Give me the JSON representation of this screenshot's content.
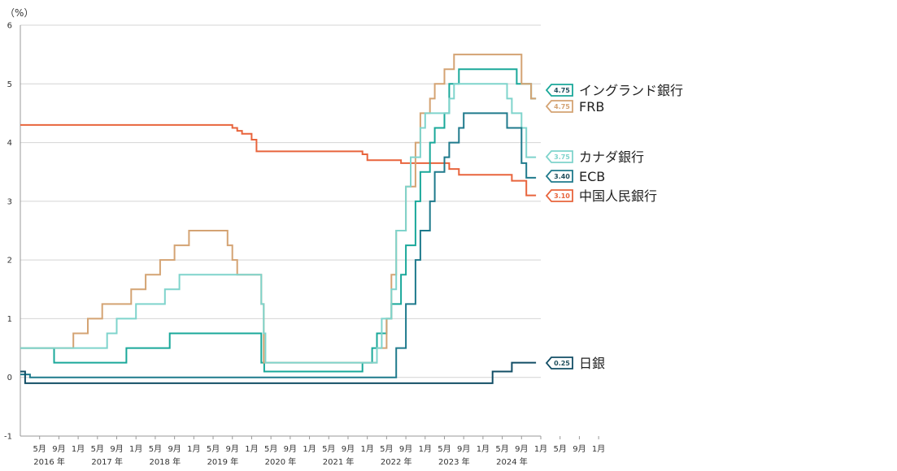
{
  "chart_data": {
    "type": "line",
    "unit_label": "（%）",
    "ylim": [
      -1,
      6
    ],
    "yticks": [
      "6",
      "5",
      "4",
      "3",
      "2",
      "1",
      "0",
      "-1"
    ],
    "x_tick_labels": [
      "5月",
      "9月",
      "1月",
      "5月",
      "9月",
      "1月",
      "5月",
      "9月",
      "1月",
      "5月",
      "9月",
      "1月",
      "5月",
      "9月",
      "1月",
      "5月",
      "9月",
      "1月",
      "5月",
      "9月",
      "1月",
      "5月",
      "9月",
      "1月",
      "5月",
      "9月",
      "1月",
      "5月",
      "9月",
      "1月"
    ],
    "year_labels": [
      "2016 年",
      "2017 年",
      "2018 年",
      "2019 年",
      "2020 年",
      "2021 年",
      "2022 年",
      "2023 年",
      "2024 年"
    ],
    "xlim": [
      "2016-01",
      "2025-01"
    ],
    "grid": true,
    "series": [
      {
        "name": "中国人民銀行",
        "color": "#e8643c",
        "end_value": "3.10",
        "points": [
          [
            "2016-01",
            4.3
          ],
          [
            "2019-08",
            4.3
          ],
          [
            "2019-09",
            4.25
          ],
          [
            "2019-10",
            4.2
          ],
          [
            "2019-11",
            4.15
          ],
          [
            "2020-01",
            4.05
          ],
          [
            "2020-02",
            3.85
          ],
          [
            "2020-04",
            3.85
          ],
          [
            "2021-12",
            3.8
          ],
          [
            "2022-01",
            3.7
          ],
          [
            "2022-08",
            3.65
          ],
          [
            "2023-06",
            3.55
          ],
          [
            "2023-08",
            3.45
          ],
          [
            "2024-02",
            3.45
          ],
          [
            "2024-07",
            3.35
          ],
          [
            "2024-10",
            3.1
          ],
          [
            "2024-12",
            3.1
          ]
        ]
      },
      {
        "name": "イングランド銀行",
        "color": "#1aa89a",
        "end_value": "4.75",
        "points": [
          [
            "2016-01",
            0.5
          ],
          [
            "2016-08",
            0.25
          ],
          [
            "2017-11",
            0.5
          ],
          [
            "2018-08",
            0.75
          ],
          [
            "2020-03",
            0.25
          ],
          [
            "2020-03-19",
            0.1
          ],
          [
            "2021-12",
            0.25
          ],
          [
            "2022-02",
            0.5
          ],
          [
            "2022-03",
            0.75
          ],
          [
            "2022-05",
            1.0
          ],
          [
            "2022-06",
            1.25
          ],
          [
            "2022-08",
            1.75
          ],
          [
            "2022-09",
            2.25
          ],
          [
            "2022-11",
            3.0
          ],
          [
            "2022-12",
            3.5
          ],
          [
            "2023-02",
            4.0
          ],
          [
            "2023-03",
            4.25
          ],
          [
            "2023-05",
            4.5
          ],
          [
            "2023-06",
            5.0
          ],
          [
            "2023-08",
            5.25
          ],
          [
            "2024-08",
            5.0
          ],
          [
            "2024-11",
            4.75
          ],
          [
            "2024-12",
            4.75
          ]
        ]
      },
      {
        "name": "FRB",
        "color": "#d4a373",
        "end_value": "4.75",
        "points": [
          [
            "2016-01",
            0.5
          ],
          [
            "2016-12",
            0.75
          ],
          [
            "2017-03",
            1.0
          ],
          [
            "2017-06",
            1.25
          ],
          [
            "2017-12",
            1.5
          ],
          [
            "2018-03",
            1.75
          ],
          [
            "2018-06",
            2.0
          ],
          [
            "2018-09",
            2.25
          ],
          [
            "2018-12",
            2.5
          ],
          [
            "2019-08",
            2.25
          ],
          [
            "2019-09",
            2.0
          ],
          [
            "2019-10",
            1.75
          ],
          [
            "2020-03",
            1.25
          ],
          [
            "2020-03-16",
            0.25
          ],
          [
            "2022-03",
            0.5
          ],
          [
            "2022-05",
            1.0
          ],
          [
            "2022-06",
            1.75
          ],
          [
            "2022-07",
            2.5
          ],
          [
            "2022-09",
            3.25
          ],
          [
            "2022-11",
            4.0
          ],
          [
            "2022-12",
            4.5
          ],
          [
            "2023-02",
            4.75
          ],
          [
            "2023-03",
            5.0
          ],
          [
            "2023-05",
            5.25
          ],
          [
            "2023-07",
            5.5
          ],
          [
            "2024-09",
            5.0
          ],
          [
            "2024-11",
            4.75
          ],
          [
            "2024-12",
            4.75
          ]
        ]
      },
      {
        "name": "カナダ銀行",
        "color": "#7fd4cc",
        "end_value": "3.75",
        "points": [
          [
            "2016-01",
            0.5
          ],
          [
            "2017-07",
            0.75
          ],
          [
            "2017-09",
            1.0
          ],
          [
            "2018-01",
            1.25
          ],
          [
            "2018-07",
            1.5
          ],
          [
            "2018-10",
            1.75
          ],
          [
            "2020-03",
            1.25
          ],
          [
            "2020-03-16",
            0.75
          ],
          [
            "2020-03-27",
            0.25
          ],
          [
            "2022-03",
            0.5
          ],
          [
            "2022-04",
            1.0
          ],
          [
            "2022-06",
            1.5
          ],
          [
            "2022-07",
            2.5
          ],
          [
            "2022-09",
            3.25
          ],
          [
            "2022-10",
            3.75
          ],
          [
            "2022-12",
            4.25
          ],
          [
            "2023-01",
            4.5
          ],
          [
            "2023-06",
            4.75
          ],
          [
            "2023-07",
            5.0
          ],
          [
            "2024-06",
            4.75
          ],
          [
            "2024-07",
            4.5
          ],
          [
            "2024-09",
            4.25
          ],
          [
            "2024-10",
            3.75
          ],
          [
            "2024-12",
            3.75
          ]
        ]
      },
      {
        "name": "ECB",
        "color": "#1f7a8c",
        "end_value": "3.40",
        "points": [
          [
            "2016-01",
            0.05
          ],
          [
            "2016-03",
            0.0
          ],
          [
            "2022-07",
            0.5
          ],
          [
            "2022-09",
            1.25
          ],
          [
            "2022-11",
            2.0
          ],
          [
            "2022-12",
            2.5
          ],
          [
            "2023-02",
            3.0
          ],
          [
            "2023-03",
            3.5
          ],
          [
            "2023-05",
            3.75
          ],
          [
            "2023-06",
            4.0
          ],
          [
            "2023-08",
            4.25
          ],
          [
            "2023-09",
            4.5
          ],
          [
            "2024-06",
            4.25
          ],
          [
            "2024-09",
            3.65
          ],
          [
            "2024-10",
            3.4
          ],
          [
            "2024-12",
            3.4
          ]
        ]
      },
      {
        "name": "日銀",
        "color": "#124e66",
        "end_value": "0.25",
        "points": [
          [
            "2016-01",
            0.1
          ],
          [
            "2016-02",
            -0.1
          ],
          [
            "2024-03",
            0.1
          ],
          [
            "2024-07",
            0.25
          ],
          [
            "2024-12",
            0.25
          ]
        ]
      }
    ],
    "end_labels": [
      {
        "name": "イングランド銀行",
        "value_text": "4.75"
      },
      {
        "name": "FRB",
        "value_text": "4.75"
      },
      {
        "name": "カナダ銀行",
        "value_text": "3.75"
      },
      {
        "name": "ECB",
        "value_text": "3.40"
      },
      {
        "name": "中国人民銀行",
        "value_text": "3.10"
      },
      {
        "name": "日銀",
        "value_text": "0.25"
      }
    ]
  }
}
